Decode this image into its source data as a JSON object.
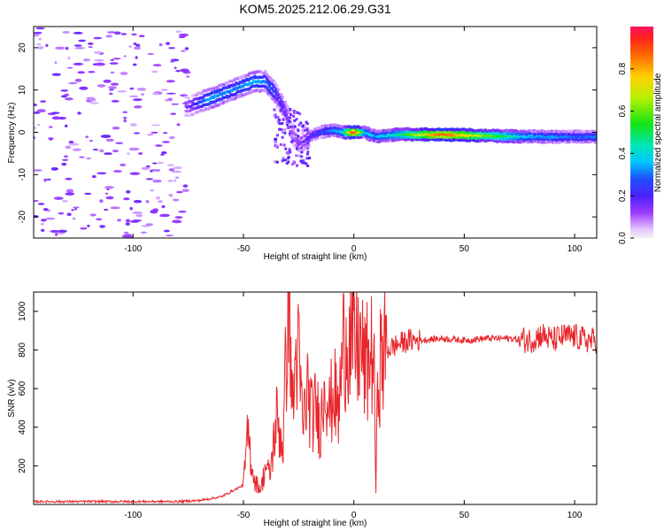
{
  "title": "KOM5.2025.212.06.29.G31",
  "chart_data": [
    {
      "type": "heatmap",
      "xlabel": "Height of straight line (km)",
      "ylabel": "Frequency (Hz)",
      "xlim": [
        -145,
        110
      ],
      "ylim": [
        -25,
        25
      ],
      "xticks": [
        -100,
        -50,
        0,
        50,
        100
      ],
      "yticks": [
        -20,
        -10,
        0,
        10,
        20
      ],
      "colorbar": {
        "label": "Normalized spectral amplitude",
        "range": [
          0,
          1
        ],
        "ticks": [
          0.0,
          0.2,
          0.4,
          0.6,
          0.8
        ],
        "colormap": "rainbow (violet to red)"
      },
      "ridge": {
        "description": "main spectral ridge (frequency vs height)",
        "x": [
          -75,
          -65,
          -55,
          -45,
          -40,
          -35,
          -30,
          -28,
          -25,
          -20,
          -15,
          -10,
          -5,
          0,
          5,
          10,
          20,
          40,
          60,
          80,
          100,
          110
        ],
        "y": [
          6,
          8,
          10,
          12,
          12,
          9,
          4,
          0,
          -3,
          -1,
          0,
          0.5,
          0,
          0,
          0,
          -1,
          -0.5,
          -0.5,
          -0.8,
          -1.0,
          -1.1,
          -1.0
        ],
        "amplitude": [
          0.15,
          0.35,
          0.3,
          0.35,
          0.3,
          0.25,
          0.15,
          0.12,
          0.12,
          0.2,
          0.25,
          0.3,
          0.4,
          0.95,
          0.4,
          0.35,
          0.45,
          0.9,
          0.6,
          0.35,
          0.3,
          0.3
        ]
      }
    },
    {
      "type": "line",
      "xlabel": "Height of straight line (km)",
      "ylabel": "SNR (v/v)",
      "xlim": [
        -145,
        110
      ],
      "ylim": [
        0,
        1100
      ],
      "xticks": [
        -100,
        -50,
        0,
        50,
        100
      ],
      "yticks": [
        200,
        400,
        600,
        800,
        1000
      ],
      "color": "#e8262b",
      "series": [
        {
          "x": [
            -145,
            -120,
            -100,
            -80,
            -70,
            -60,
            -55,
            -50,
            -48,
            -45,
            -42,
            -40,
            -38,
            -35,
            -32,
            -30,
            -29,
            -28,
            -27,
            -26,
            -25,
            -23,
            -21,
            -19,
            -17,
            -15,
            -13,
            -11,
            -9,
            -7,
            -5,
            -3,
            -1,
            1,
            3,
            5,
            7,
            9,
            10,
            11,
            13,
            15,
            20,
            25,
            30,
            40,
            50,
            60,
            70,
            80,
            85,
            90,
            95,
            100,
            105,
            110
          ],
          "y": [
            15,
            15,
            15,
            15,
            20,
            40,
            70,
            100,
            360,
            120,
            80,
            200,
            150,
            450,
            300,
            1000,
            1100,
            500,
            600,
            800,
            750,
            400,
            600,
            450,
            500,
            400,
            700,
            480,
            600,
            450,
            800,
            900,
            820,
            800,
            820,
            700,
            750,
            800,
            75,
            700,
            760,
            800,
            830,
            850,
            850,
            860,
            850,
            860,
            860,
            850,
            880,
            850,
            870,
            870,
            850,
            850
          ]
        }
      ]
    }
  ]
}
